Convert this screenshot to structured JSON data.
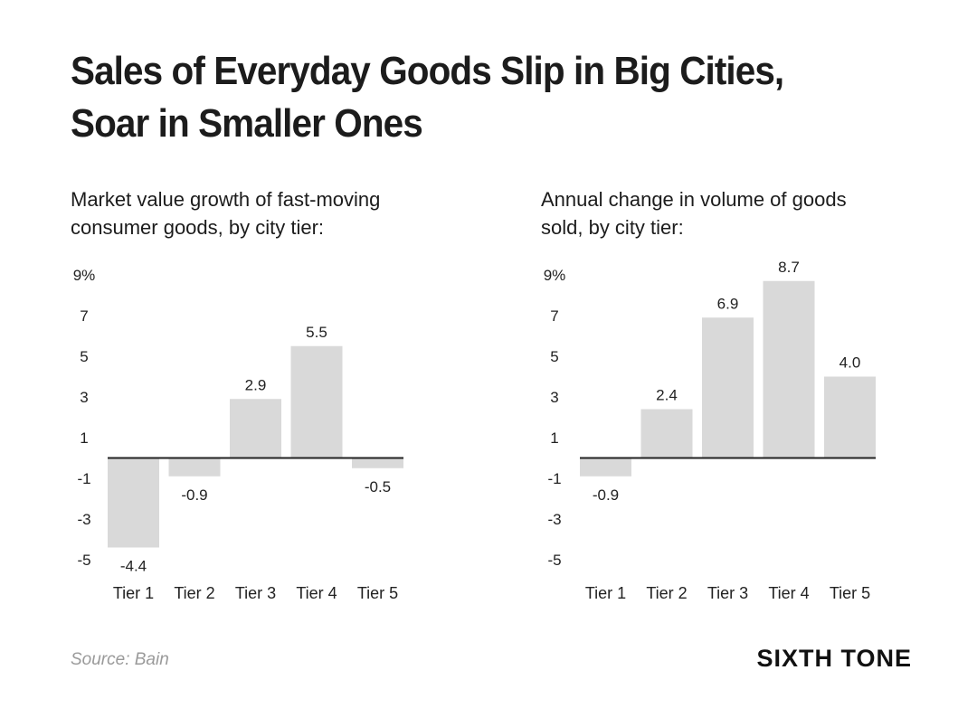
{
  "title": {
    "line1": "Sales of Everyday Goods Slip in Big Cities,",
    "line2": "Soar in Smaller Ones"
  },
  "charts": {
    "left": {
      "subtitle_line1": "Market value growth of fast-moving",
      "subtitle_line2": "consumer goods, by city tier:"
    },
    "right": {
      "subtitle_line1": "Annual change in volume of goods",
      "subtitle_line2": "sold, by city tier:"
    }
  },
  "chart_data": [
    {
      "type": "bar",
      "title": "Market value growth of fast-moving consumer goods, by city tier:",
      "categories": [
        "Tier 1",
        "Tier 2",
        "Tier 3",
        "Tier 4",
        "Tier 5"
      ],
      "values": [
        -4.4,
        -0.9,
        2.9,
        5.5,
        -0.5
      ],
      "value_labels": [
        "-4.4",
        "-0.9",
        "2.9",
        "5.5",
        "-0.5"
      ],
      "yticks": [
        "9%",
        "7",
        "5",
        "3",
        "1",
        "-1",
        "-3",
        "-5"
      ],
      "ylim": [
        -5,
        9
      ],
      "bar_color": "#d9d9d9",
      "grid": false
    },
    {
      "type": "bar",
      "title": "Annual change in volume of goods sold, by city tier:",
      "categories": [
        "Tier 1",
        "Tier 2",
        "Tier 3",
        "Tier 4",
        "Tier 5"
      ],
      "values": [
        -0.9,
        2.4,
        6.9,
        8.7,
        4.0
      ],
      "value_labels": [
        "-0.9",
        "2.4",
        "6.9",
        "8.7",
        "4.0"
      ],
      "yticks": [
        "9%",
        "7",
        "5",
        "3",
        "1",
        "-1",
        "-3",
        "-5"
      ],
      "ylim": [
        -5,
        9
      ],
      "bar_color": "#d9d9d9",
      "grid": false
    }
  ],
  "footer": {
    "source": "Source: Bain",
    "brand": "SIXTH TONE"
  }
}
